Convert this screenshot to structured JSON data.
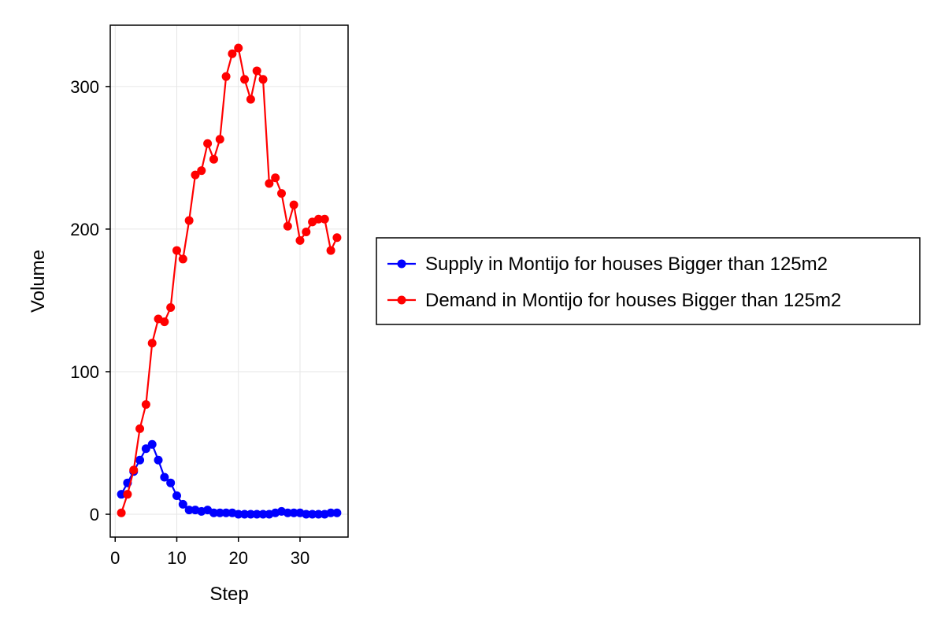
{
  "chart_data": {
    "type": "line",
    "title": "",
    "xlabel": "Step",
    "ylabel": "Volume",
    "xlim": [
      -0.8,
      37.8
    ],
    "ylim": [
      -16,
      343
    ],
    "xticks": [
      0,
      10,
      20,
      30
    ],
    "yticks": [
      0,
      100,
      200,
      300
    ],
    "grid": true,
    "legend_position": "right",
    "x": [
      1,
      2,
      3,
      4,
      5,
      6,
      7,
      8,
      9,
      10,
      11,
      12,
      13,
      14,
      15,
      16,
      17,
      18,
      19,
      20,
      21,
      22,
      23,
      24,
      25,
      26,
      27,
      28,
      29,
      30,
      31,
      32,
      33,
      34,
      35,
      36
    ],
    "series": [
      {
        "name": "Supply in Montijo for houses Bigger than 125m2",
        "color": "#0000ff",
        "values": [
          14,
          22,
          30,
          38,
          46,
          49,
          38,
          26,
          22,
          13,
          7,
          3,
          3,
          2,
          3,
          1,
          1,
          1,
          1,
          0,
          0,
          0,
          0,
          0,
          0,
          1,
          2,
          1,
          1,
          1,
          0,
          0,
          0,
          0,
          1,
          1
        ]
      },
      {
        "name": "Demand in Montijo for houses Bigger than 125m2",
        "color": "#ff0000",
        "values": [
          1,
          14,
          31,
          60,
          77,
          120,
          137,
          135,
          145,
          185,
          179,
          206,
          238,
          241,
          260,
          249,
          263,
          307,
          323,
          327,
          305,
          291,
          311,
          305,
          232,
          236,
          225,
          202,
          217,
          192,
          198,
          205,
          207,
          207,
          185,
          194
        ]
      }
    ]
  }
}
